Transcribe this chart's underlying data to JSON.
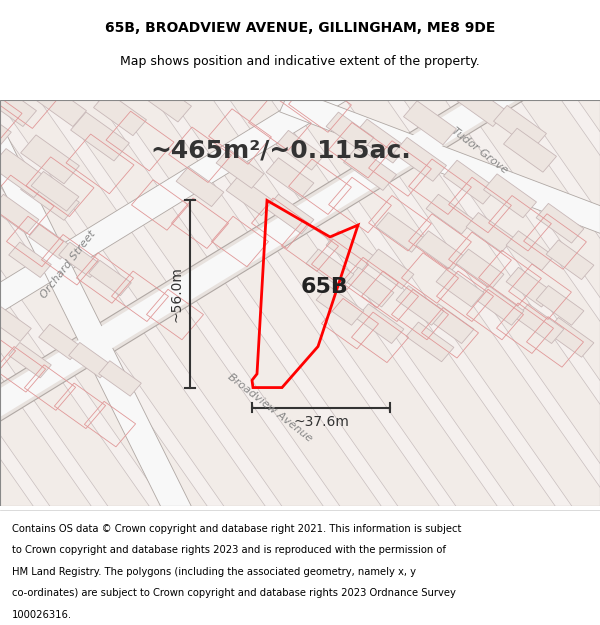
{
  "title": "65B, BROADVIEW AVENUE, GILLINGHAM, ME8 9DE",
  "subtitle": "Map shows position and indicative extent of the property.",
  "footer_lines": [
    "Contains OS data © Crown copyright and database right 2021. This information is subject",
    "to Crown copyright and database rights 2023 and is reproduced with the permission of",
    "HM Land Registry. The polygons (including the associated geometry, namely x, y",
    "co-ordinates) are subject to Crown copyright and database rights 2023 Ordnance Survey",
    "100026316."
  ],
  "area_text": "~465m²/~0.115ac.",
  "label_65B": "65B",
  "dim_height": "~56.0m",
  "dim_width": "~37.6m",
  "street_label": "Broadview Avenue",
  "tudor_grove": "Tudor Grove",
  "orchard_street": "Orchard Street",
  "map_bg": "#f2ece8",
  "highlight_stroke": "#ff0000",
  "dim_color": "#333333",
  "title_color": "#000000",
  "footer_color": "#000000",
  "title_fontsize": 10,
  "subtitle_fontsize": 9,
  "footer_fontsize": 7.2,
  "area_fontsize": 18,
  "label_fontsize": 16,
  "dim_fontsize": 10,
  "street_fontsize": 8
}
